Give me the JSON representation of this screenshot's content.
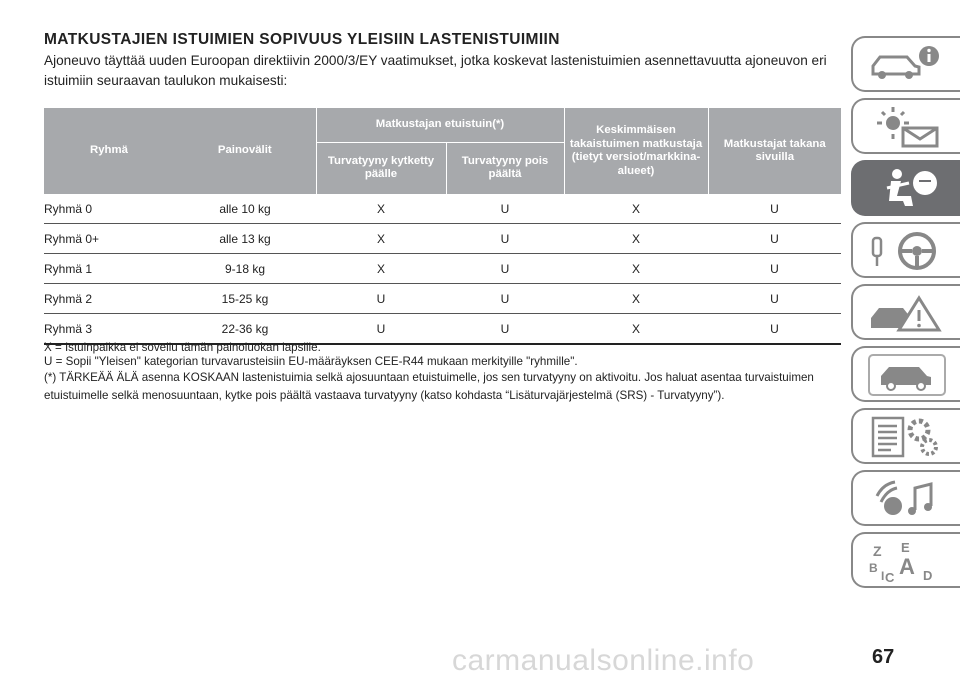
{
  "title": "MATKUSTAJIEN ISTUIMIEN SOPIVUUS YLEISIIN LASTENISTUIMIIN",
  "intro": "Ajoneuvo täyttää uuden Euroopan direktiivin 2000/3/EY vaatimukset, jotka koskevat lastenistuimien asennettavuutta ajoneuvon eri istuimiin seuraavan taulukon mukaisesti:",
  "table": {
    "headers": {
      "group": "Ryhmä",
      "weight": "Painovälit",
      "front": "Matkustajan etuistuin(*)",
      "front_on": "Turvatyyny kytketty päälle",
      "front_off": "Turvatyyny pois päältä",
      "rear_center": "Keskimmäisen takaistuimen matkustaja (tietyt versiot/markkina-alueet)",
      "rear_sides": "Matkustajat takana sivuilla"
    },
    "rows": [
      {
        "group": "Ryhmä 0",
        "weight": "alle 10 kg",
        "on": "X",
        "off": "U",
        "center": "X",
        "sides": "U"
      },
      {
        "group": "Ryhmä 0+",
        "weight": "alle 13 kg",
        "on": "X",
        "off": "U",
        "center": "X",
        "sides": "U"
      },
      {
        "group": "Ryhmä 1",
        "weight": "9-18 kg",
        "on": "X",
        "off": "U",
        "center": "X",
        "sides": "U"
      },
      {
        "group": "Ryhmä 2",
        "weight": "15-25 kg",
        "on": "U",
        "off": "U",
        "center": "X",
        "sides": "U"
      },
      {
        "group": "Ryhmä 3",
        "weight": "22-36 kg",
        "on": "U",
        "off": "U",
        "center": "X",
        "sides": "U"
      }
    ]
  },
  "notes": {
    "x": "X = Istuinpaikka ei sovellu tämän painoluokan lapsille.",
    "u": "U = Sopii \"Yleisen\" kategorian turvavarusteisiin EU-määräyksen CEE-R44 mukaan merkityille \"ryhmille\".",
    "important": "(*) TÄRKEÄÄ ÄLÄ asenna KOSKAAN lastenistuimia selkä ajosuuntaan etuistuimelle, jos sen turvatyyny on aktivoitu. Jos haluat asentaa turvaistuimen etuistuimelle selkä menosuuntaan, kytke pois päältä vastaava turvatyyny (katso kohdasta “Lisäturvajärjestelmä (SRS) - Turvatyyny”)."
  },
  "sidebar_icons": [
    "car-info-icon",
    "warning-lights-icon",
    "seat-airbag-icon",
    "steering-wheel-icon",
    "breakdown-icon",
    "car-maintenance-icon",
    "technical-data-icon",
    "multimedia-icon",
    "index-icon"
  ],
  "page_number": "67",
  "watermark": "carmanualsonline.info"
}
